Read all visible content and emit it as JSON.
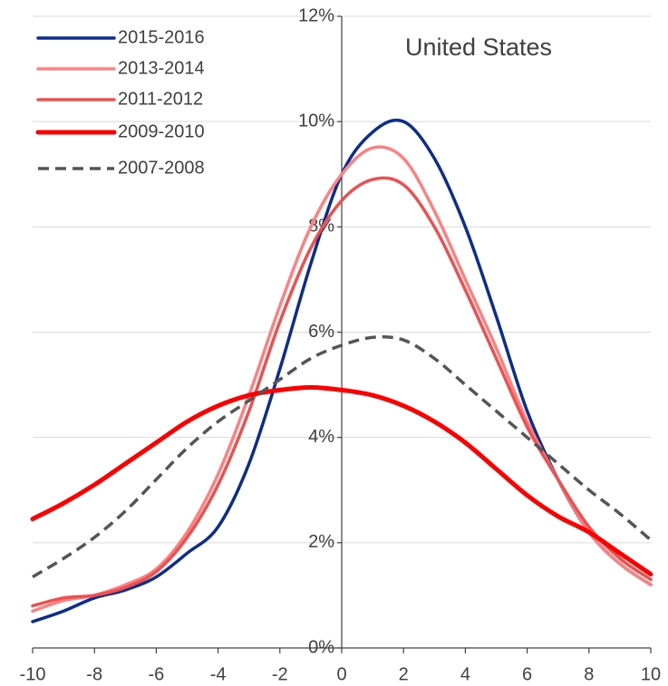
{
  "chart_data": {
    "type": "line",
    "annotation": "United States",
    "x": [
      -10,
      -9,
      -8,
      -7,
      -6,
      -5,
      -4,
      -3,
      -2,
      -1,
      0,
      1,
      2,
      3,
      4,
      5,
      6,
      7,
      8,
      9,
      10
    ],
    "series": [
      {
        "name": "2015-2016",
        "color": "#0a2d8f",
        "values": [
          0.5,
          0.7,
          0.95,
          1.1,
          1.35,
          1.8,
          2.3,
          3.5,
          5.3,
          7.3,
          9.0,
          9.8,
          10.0,
          9.3,
          8.0,
          6.3,
          4.5,
          3.2,
          2.2,
          1.6,
          1.2
        ]
      },
      {
        "name": "2013-2014",
        "color": "#ff8080",
        "values": [
          0.7,
          0.9,
          1.0,
          1.2,
          1.5,
          2.2,
          3.3,
          4.8,
          6.5,
          8.0,
          9.0,
          9.5,
          9.3,
          8.3,
          7.0,
          5.7,
          4.3,
          3.2,
          2.2,
          1.6,
          1.2
        ]
      },
      {
        "name": "2011-2012",
        "color": "#f04f4f",
        "values": [
          0.8,
          0.95,
          1.0,
          1.15,
          1.45,
          2.1,
          3.1,
          4.5,
          6.2,
          7.6,
          8.5,
          8.9,
          8.8,
          8.0,
          6.8,
          5.5,
          4.2,
          3.2,
          2.3,
          1.7,
          1.3
        ]
      },
      {
        "name": "2009-2010",
        "color": "#ff0000",
        "values": [
          2.45,
          2.75,
          3.1,
          3.5,
          3.9,
          4.3,
          4.6,
          4.8,
          4.9,
          4.95,
          4.9,
          4.8,
          4.6,
          4.3,
          3.9,
          3.4,
          2.9,
          2.5,
          2.2,
          1.8,
          1.4
        ]
      },
      {
        "name": "2007-2008",
        "color": "#555555",
        "dashed": true,
        "values": [
          1.35,
          1.7,
          2.1,
          2.6,
          3.2,
          3.8,
          4.3,
          4.7,
          5.1,
          5.5,
          5.75,
          5.9,
          5.85,
          5.5,
          5.0,
          4.5,
          4.0,
          3.5,
          3.0,
          2.55,
          2.05
        ]
      }
    ],
    "xlim": [
      -10,
      10
    ],
    "xticks": [
      -10,
      -8,
      -6,
      -4,
      -2,
      0,
      2,
      4,
      6,
      8,
      10
    ],
    "ylim": [
      0,
      12
    ],
    "yticks": [
      {
        "value": 0,
        "label": "0%"
      },
      {
        "value": 2,
        "label": "2%"
      },
      {
        "value": 4,
        "label": "4%"
      },
      {
        "value": 6,
        "label": "6%"
      },
      {
        "value": 8,
        "label": "8%"
      },
      {
        "value": 10,
        "label": "10%"
      },
      {
        "value": 12,
        "label": "12%"
      }
    ],
    "grid": true,
    "legend": "top-left"
  }
}
